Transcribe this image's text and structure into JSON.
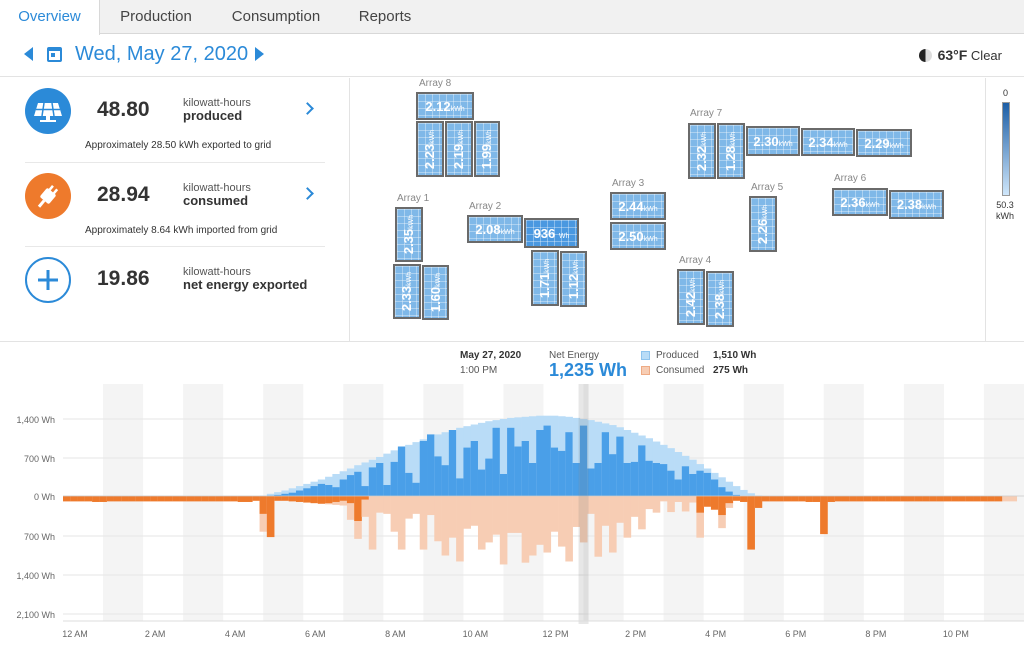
{
  "tabs": [
    {
      "label": "Overview",
      "active": true
    },
    {
      "label": "Production",
      "active": false
    },
    {
      "label": "Consumption",
      "active": false
    },
    {
      "label": "Reports",
      "active": false
    }
  ],
  "date": {
    "label": "Wed, May 27, 2020"
  },
  "weather": {
    "temp": "63°F",
    "condition": "Clear",
    "icon": "moon-phase-icon"
  },
  "stats": {
    "produced": {
      "value": "48.80",
      "unit": "kilowatt-hours",
      "label": "produced",
      "note": "Approximately 28.50 kWh exported to grid",
      "icon": "solar-panel-icon"
    },
    "consumed": {
      "value": "28.94",
      "unit": "kilowatt-hours",
      "label": "consumed",
      "note": "Approximately 8.64 kWh imported from grid",
      "icon": "plug-icon"
    },
    "net": {
      "value": "19.86",
      "unit": "kilowatt-hours",
      "label": "net energy exported",
      "icon": "plus-icon"
    }
  },
  "arrays": {
    "a8": {
      "name": "Array 8",
      "p1": "2.12",
      "p2": "2.23",
      "p3": "2.19",
      "p4": "1.99"
    },
    "a7": {
      "name": "Array 7",
      "p1": "2.32",
      "p2": "1.28",
      "p3": "2.30",
      "p4": "2.34",
      "p5": "2.29"
    },
    "a1": {
      "name": "Array 1",
      "p1": "2.35",
      "p2": "2.33",
      "p3": "1.60"
    },
    "a2": {
      "name": "Array 2",
      "p1": "2.08",
      "p2": "936",
      "p3": "1.71",
      "p4": "1.12"
    },
    "a3": {
      "name": "Array 3",
      "p1": "2.44",
      "p2": "2.50"
    },
    "a4": {
      "name": "Array 4",
      "p1": "2.42",
      "p2": "2.38"
    },
    "a5": {
      "name": "Array 5",
      "p1": "2.26"
    },
    "a6": {
      "name": "Array 6",
      "p1": "2.36",
      "p2": "2.38"
    },
    "kwh": "kWh",
    "wh": "Wh"
  },
  "legend": {
    "min": "0",
    "max": "50.3",
    "unit": "kWh"
  },
  "tooltip": {
    "date": "May 27, 2020",
    "time": "1:00 PM",
    "net_label": "Net Energy",
    "net_value": "1,235 Wh",
    "produced_label": "Produced",
    "produced_value": "1,510 Wh",
    "consumed_label": "Consumed",
    "consumed_value": "275 Wh"
  },
  "colors": {
    "accent": "#2b8ad8",
    "produced_light": "#b9dcf7",
    "produced_dark": "#4a9fe8",
    "consumed_light": "#f7cdb4",
    "consumed_dark": "#ee7a2c"
  },
  "chart_data": {
    "type": "bar",
    "ylabels": [
      "1,400 Wh",
      "700 Wh",
      "0 Wh",
      "700 Wh",
      "1,400 Wh",
      "2,100 Wh"
    ],
    "xlabels": [
      "12 AM",
      "2 AM",
      "4 AM",
      "6 AM",
      "8 AM",
      "10 AM",
      "12 PM",
      "2 PM",
      "4 PM",
      "6 PM",
      "8 PM",
      "10 PM"
    ],
    "ylim_produced": [
      0,
      1400
    ],
    "ylim_consumed": [
      0,
      2100
    ],
    "interval_minutes": 15,
    "series": [
      {
        "name": "Produced",
        "note": "light = total production, dark = net exported",
        "produced": [
          0,
          0,
          0,
          0,
          0,
          0,
          0,
          0,
          0,
          0,
          0,
          0,
          0,
          0,
          0,
          0,
          0,
          0,
          0,
          0,
          0,
          0,
          0,
          0,
          0,
          0,
          0,
          10,
          40,
          70,
          100,
          140,
          180,
          220,
          260,
          300,
          350,
          400,
          450,
          500,
          560,
          610,
          660,
          710,
          770,
          830,
          880,
          930,
          980,
          1030,
          1080,
          1120,
          1160,
          1200,
          1240,
          1270,
          1300,
          1330,
          1360,
          1380,
          1400,
          1420,
          1430,
          1440,
          1450,
          1460,
          1460,
          1460,
          1450,
          1440,
          1420,
          1400,
          1380,
          1350,
          1320,
          1290,
          1250,
          1200,
          1150,
          1100,
          1050,
          990,
          930,
          870,
          800,
          730,
          660,
          580,
          500,
          420,
          340,
          260,
          180,
          110,
          50,
          10,
          0,
          0,
          0,
          0,
          0,
          0,
          0,
          0,
          0,
          0,
          0,
          0,
          0,
          0,
          0,
          0,
          0,
          0,
          0,
          0,
          0,
          0,
          0,
          0,
          0,
          0,
          0,
          0,
          0,
          0,
          0,
          0,
          0,
          0,
          0,
          0
        ],
        "exported": [
          0,
          0,
          0,
          0,
          0,
          0,
          0,
          0,
          0,
          0,
          0,
          0,
          0,
          0,
          0,
          0,
          0,
          0,
          0,
          0,
          0,
          0,
          0,
          0,
          0,
          0,
          0,
          0,
          10,
          20,
          40,
          60,
          100,
          140,
          180,
          220,
          200,
          160,
          300,
          380,
          440,
          180,
          520,
          600,
          200,
          620,
          900,
          420,
          240,
          1000,
          1120,
          720,
          560,
          1200,
          320,
          880,
          1000,
          480,
          680,
          1240,
          400,
          1240,
          900,
          1000,
          600,
          1200,
          1280,
          880,
          820,
          1160,
          600,
          1280,
          500,
          600,
          1160,
          760,
          1080,
          600,
          620,
          920,
          640,
          600,
          580,
          460,
          300,
          540,
          400,
          460,
          420,
          300,
          160,
          80,
          20,
          0,
          0,
          0,
          0,
          0,
          0,
          0,
          0,
          0,
          0,
          0,
          0,
          0,
          0,
          0,
          0,
          0,
          0,
          0,
          0,
          0,
          0,
          0,
          0,
          0,
          0,
          0,
          0,
          0,
          0,
          0,
          0,
          0,
          0,
          0,
          0,
          0
        ]
      },
      {
        "name": "Consumed",
        "consumed": [
          90,
          90,
          90,
          90,
          100,
          100,
          90,
          90,
          90,
          90,
          90,
          90,
          90,
          90,
          90,
          90,
          90,
          90,
          90,
          90,
          90,
          90,
          90,
          90,
          100,
          100,
          80,
          600,
          690,
          80,
          80,
          90,
          100,
          110,
          120,
          130,
          140,
          150,
          160,
          400,
          720,
          350,
          900,
          280,
          300,
          600,
          900,
          380,
          300,
          900,
          320,
          760,
          1000,
          700,
          1100,
          550,
          500,
          900,
          780,
          650,
          1150,
          620,
          620,
          1120,
          1000,
          820,
          950,
          600,
          850,
          1100,
          520,
          780,
          300,
          1020,
          500,
          950,
          450,
          700,
          350,
          560,
          220,
          280,
          90,
          270,
          100,
          260,
          110,
          700,
          180,
          230,
          540,
          200,
          80,
          100,
          900,
          200,
          90,
          90,
          90,
          90,
          90,
          90,
          100,
          100,
          640,
          100,
          90,
          90,
          90,
          90,
          90,
          90,
          90,
          90,
          90,
          90,
          90,
          90,
          90,
          90,
          90,
          90,
          90,
          90,
          90,
          90,
          90,
          90,
          90,
          90,
          90
        ],
        "imported": [
          90,
          90,
          90,
          90,
          100,
          100,
          90,
          90,
          90,
          90,
          90,
          90,
          90,
          90,
          90,
          90,
          90,
          90,
          90,
          90,
          90,
          90,
          90,
          90,
          100,
          100,
          80,
          300,
          690,
          80,
          80,
          90,
          100,
          110,
          120,
          130,
          120,
          100,
          80,
          120,
          420,
          60,
          0,
          0,
          0,
          0,
          0,
          0,
          0,
          0,
          0,
          0,
          0,
          0,
          0,
          0,
          0,
          0,
          0,
          0,
          0,
          0,
          0,
          0,
          0,
          0,
          0,
          0,
          0,
          0,
          0,
          0,
          0,
          0,
          0,
          0,
          0,
          0,
          0,
          0,
          0,
          0,
          0,
          0,
          0,
          0,
          0,
          280,
          180,
          230,
          320,
          120,
          80,
          100,
          900,
          200,
          90,
          90,
          90,
          90,
          90,
          90,
          100,
          100,
          640,
          100,
          90,
          90,
          90,
          90,
          90,
          90,
          90,
          90,
          90,
          90,
          90,
          90,
          90,
          90,
          90,
          90,
          90,
          90,
          90,
          90,
          90,
          90,
          90
        ]
      }
    ]
  }
}
